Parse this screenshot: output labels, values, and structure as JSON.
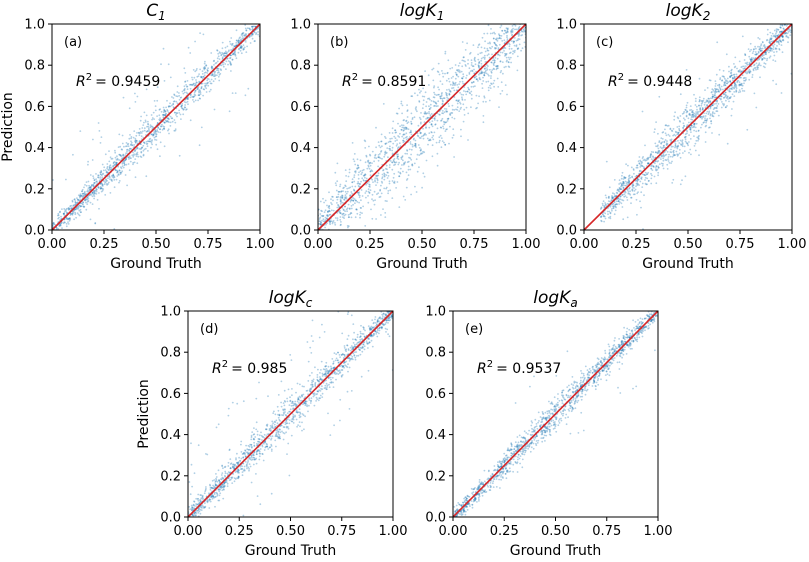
{
  "figure": {
    "colors": {
      "points": "#1f77b4",
      "diagonal": "#d62728",
      "axes": "#000000"
    }
  },
  "chart_data": [
    {
      "type": "scatter",
      "panel": "(a)",
      "title_base": "C",
      "title_sub": "1",
      "r2_text": "= 0.9459",
      "r2_value": 0.9459,
      "xlabel": "Ground Truth",
      "ylabel": "Prediction",
      "xlim": [
        0,
        1
      ],
      "ylim": [
        0,
        1
      ],
      "xticks": [
        "0.00",
        "0.25",
        "0.50",
        "0.75",
        "1.00"
      ],
      "yticks": [
        "0.0",
        "0.2",
        "0.4",
        "0.6",
        "0.8",
        "1.0"
      ],
      "reference_line": "y = x"
    },
    {
      "type": "scatter",
      "panel": "(b)",
      "title_base": "logK",
      "title_sub": "1",
      "r2_text": "= 0.8591",
      "r2_value": 0.8591,
      "xlabel": "Ground Truth",
      "ylabel": "",
      "xlim": [
        0,
        1
      ],
      "ylim": [
        0,
        1
      ],
      "xticks": [
        "0.00",
        "0.25",
        "0.50",
        "0.75",
        "1.00"
      ],
      "yticks": [
        "0.0",
        "0.2",
        "0.4",
        "0.6",
        "0.8",
        "1.0"
      ],
      "reference_line": "y = x"
    },
    {
      "type": "scatter",
      "panel": "(c)",
      "title_base": "logK",
      "title_sub": "2",
      "r2_text": "= 0.9448",
      "r2_value": 0.9448,
      "xlabel": "Ground Truth",
      "ylabel": "",
      "xlim": [
        0,
        1
      ],
      "ylim": [
        0,
        1
      ],
      "xticks": [
        "0.00",
        "0.25",
        "0.50",
        "0.75",
        "1.00"
      ],
      "yticks": [
        "0.0",
        "0.2",
        "0.4",
        "0.6",
        "0.8",
        "1.0"
      ],
      "reference_line": "y = x"
    },
    {
      "type": "scatter",
      "panel": "(d)",
      "title_base": "logK",
      "title_sub": "c",
      "r2_text": "= 0.985",
      "r2_value": 0.985,
      "xlabel": "Ground Truth",
      "ylabel": "Prediction",
      "xlim": [
        0,
        1
      ],
      "ylim": [
        0,
        1
      ],
      "xticks": [
        "0.00",
        "0.25",
        "0.50",
        "0.75",
        "1.00"
      ],
      "yticks": [
        "0.0",
        "0.2",
        "0.4",
        "0.6",
        "0.8",
        "1.0"
      ],
      "reference_line": "y = x"
    },
    {
      "type": "scatter",
      "panel": "(e)",
      "title_base": "logK",
      "title_sub": "a",
      "r2_text": "= 0.9537",
      "r2_value": 0.9537,
      "xlabel": "Ground Truth",
      "ylabel": "",
      "xlim": [
        0,
        1
      ],
      "ylim": [
        0,
        1
      ],
      "xticks": [
        "0.00",
        "0.25",
        "0.50",
        "0.75",
        "1.00"
      ],
      "yticks": [
        "0.0",
        "0.2",
        "0.4",
        "0.6",
        "0.8",
        "1.0"
      ],
      "reference_line": "y = x"
    }
  ]
}
